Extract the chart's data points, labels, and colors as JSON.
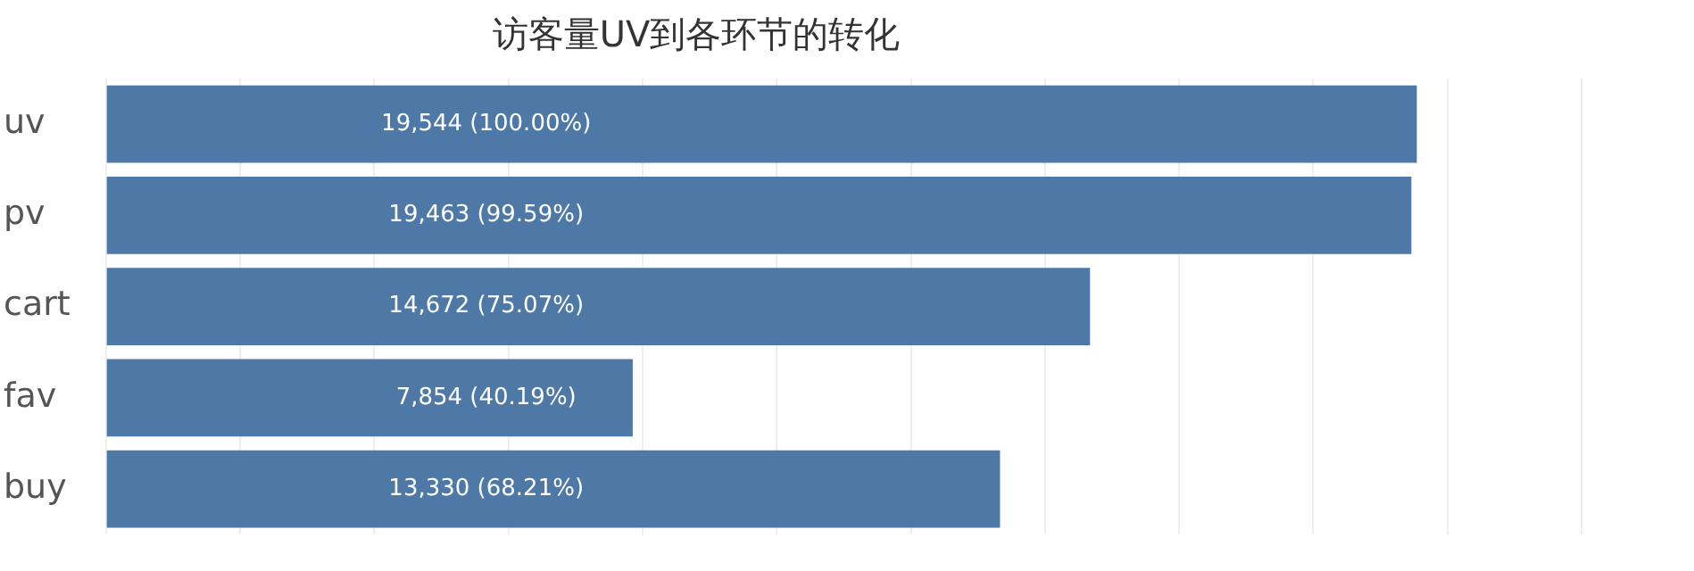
{
  "chart_data": {
    "type": "bar",
    "orientation": "horizontal",
    "title": "访客量UV到各环节的转化",
    "categories": [
      "uv",
      "pv",
      "cart",
      "fav",
      "buy"
    ],
    "values": [
      19544,
      19463,
      14672,
      7854,
      13330
    ],
    "value_labels": [
      "19,544 (100.00%)",
      "19,463 (99.59%)",
      "14,672 (75.07%)",
      "7,854 (40.19%)",
      "13,330 (68.21%)"
    ],
    "color": "#4e79a7",
    "xlim": [
      0,
      22000
    ],
    "xticks": [
      {
        "value": 0,
        "label": null
      },
      {
        "value": 2000,
        "label": null
      },
      {
        "value": 4000,
        "label": null
      },
      {
        "value": 6000,
        "label": null
      },
      {
        "value": 8000,
        "label": null
      },
      {
        "value": 10000,
        "label": null
      },
      {
        "value": 12000,
        "label": null
      },
      {
        "value": 14000,
        "label": null
      },
      {
        "value": 16000,
        "label": null
      },
      {
        "value": 18000,
        "label": null
      },
      {
        "value": 20000,
        "label": null
      },
      {
        "value": 22000,
        "label": null
      }
    ],
    "grid": "x",
    "legend": false
  }
}
